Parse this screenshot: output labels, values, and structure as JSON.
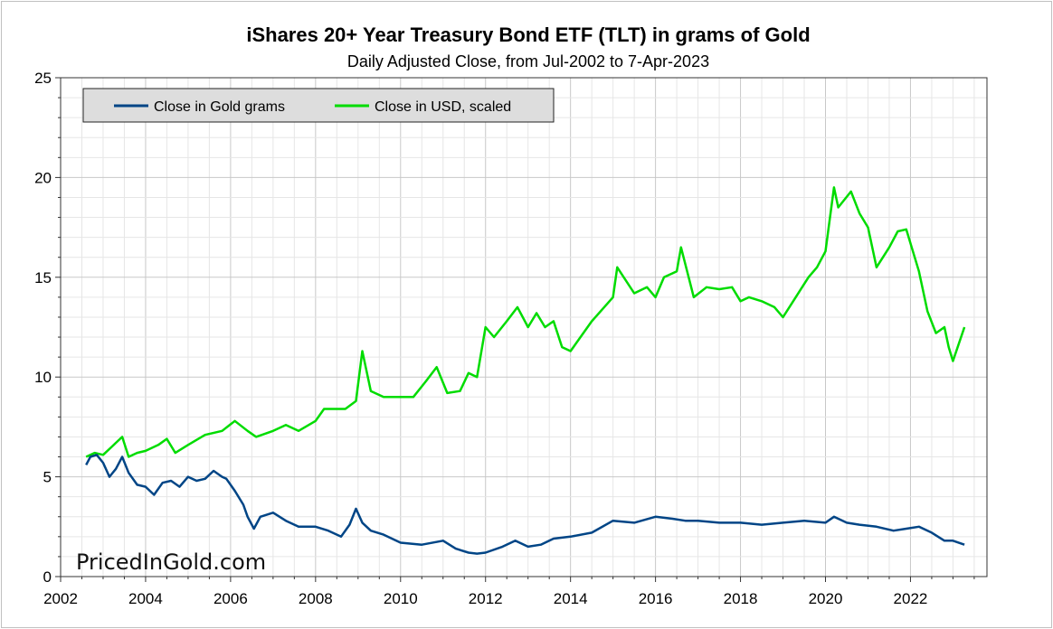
{
  "chart_data": {
    "type": "line",
    "title": "iShares 20+ Year Treasury Bond ETF (TLT) in grams of Gold",
    "subtitle": "Daily Adjusted Close, from Jul-2002 to 7-Apr-2023",
    "xlabel": "",
    "ylabel": "",
    "xlim": [
      2002,
      2023.8
    ],
    "ylim": [
      0,
      25
    ],
    "x_ticks": [
      "2002",
      "2004",
      "2006",
      "2008",
      "2010",
      "2012",
      "2014",
      "2016",
      "2018",
      "2020",
      "2022"
    ],
    "y_ticks": [
      "0",
      "5",
      "10",
      "15",
      "20",
      "25"
    ],
    "grid": true,
    "legend_position": "top-left",
    "watermark": "PricedInGold.com",
    "series": [
      {
        "name": "Close in Gold grams",
        "color": "#004586",
        "x": [
          2002.6,
          2002.7,
          2002.85,
          2003.0,
          2003.15,
          2003.3,
          2003.45,
          2003.6,
          2003.8,
          2004.0,
          2004.2,
          2004.4,
          2004.6,
          2004.8,
          2005.0,
          2005.2,
          2005.4,
          2005.6,
          2005.8,
          2005.9,
          2006.1,
          2006.3,
          2006.4,
          2006.55,
          2006.7,
          2007.0,
          2007.3,
          2007.6,
          2008.0,
          2008.3,
          2008.6,
          2008.8,
          2008.95,
          2009.1,
          2009.3,
          2009.6,
          2010.0,
          2010.5,
          2011.0,
          2011.3,
          2011.6,
          2011.8,
          2012.0,
          2012.4,
          2012.7,
          2013.0,
          2013.3,
          2013.6,
          2014.0,
          2014.5,
          2015.0,
          2015.5,
          2016.0,
          2016.4,
          2016.7,
          2017.0,
          2017.5,
          2018.0,
          2018.5,
          2019.0,
          2019.5,
          2020.0,
          2020.2,
          2020.5,
          2020.8,
          2021.2,
          2021.6,
          2021.9,
          2022.2,
          2022.5,
          2022.8,
          2023.0,
          2023.27
        ],
        "values": [
          5.6,
          6.0,
          6.1,
          5.7,
          5.0,
          5.4,
          6.0,
          5.2,
          4.6,
          4.5,
          4.1,
          4.7,
          4.8,
          4.5,
          5.0,
          4.8,
          4.9,
          5.3,
          5.0,
          4.9,
          4.3,
          3.6,
          3.0,
          2.4,
          3.0,
          3.2,
          2.8,
          2.5,
          2.5,
          2.3,
          2.0,
          2.6,
          3.4,
          2.7,
          2.3,
          2.1,
          1.7,
          1.6,
          1.8,
          1.4,
          1.2,
          1.15,
          1.2,
          1.5,
          1.8,
          1.5,
          1.6,
          1.9,
          2.0,
          2.2,
          2.8,
          2.7,
          3.0,
          2.9,
          2.8,
          2.8,
          2.7,
          2.7,
          2.6,
          2.7,
          2.8,
          2.7,
          3.0,
          2.7,
          2.6,
          2.5,
          2.3,
          2.4,
          2.5,
          2.2,
          1.8,
          1.8,
          1.6
        ]
      },
      {
        "name": "Close in USD, scaled",
        "color": "#00dc00",
        "x": [
          2002.6,
          2002.8,
          2003.0,
          2003.2,
          2003.45,
          2003.6,
          2003.8,
          2004.0,
          2004.3,
          2004.5,
          2004.7,
          2005.0,
          2005.4,
          2005.8,
          2006.1,
          2006.4,
          2006.6,
          2007.0,
          2007.3,
          2007.6,
          2008.0,
          2008.2,
          2008.5,
          2008.7,
          2008.95,
          2009.1,
          2009.3,
          2009.6,
          2010.0,
          2010.3,
          2010.6,
          2010.85,
          2011.1,
          2011.4,
          2011.6,
          2011.8,
          2012.0,
          2012.2,
          2012.5,
          2012.75,
          2013.0,
          2013.2,
          2013.4,
          2013.6,
          2013.8,
          2014.0,
          2014.5,
          2015.0,
          2015.1,
          2015.5,
          2015.8,
          2016.0,
          2016.2,
          2016.5,
          2016.6,
          2016.9,
          2017.2,
          2017.5,
          2017.8,
          2018.0,
          2018.2,
          2018.5,
          2018.8,
          2019.0,
          2019.3,
          2019.6,
          2019.8,
          2020.0,
          2020.2,
          2020.3,
          2020.6,
          2020.8,
          2021.0,
          2021.2,
          2021.5,
          2021.7,
          2021.9,
          2022.2,
          2022.4,
          2022.6,
          2022.8,
          2022.9,
          2023.0,
          2023.27
        ],
        "values": [
          6.0,
          6.2,
          6.1,
          6.5,
          7.0,
          6.0,
          6.2,
          6.3,
          6.6,
          6.9,
          6.2,
          6.6,
          7.1,
          7.3,
          7.8,
          7.3,
          7.0,
          7.3,
          7.6,
          7.3,
          7.8,
          8.4,
          8.4,
          8.4,
          8.8,
          11.3,
          9.3,
          9.0,
          9.0,
          9.0,
          9.8,
          10.5,
          9.2,
          9.3,
          10.2,
          10.0,
          12.5,
          12.0,
          12.8,
          13.5,
          12.5,
          13.2,
          12.5,
          12.8,
          11.5,
          11.3,
          12.8,
          14.0,
          15.5,
          14.2,
          14.5,
          14.0,
          15.0,
          15.3,
          16.5,
          14.0,
          14.5,
          14.4,
          14.5,
          13.8,
          14.0,
          13.8,
          13.5,
          13.0,
          14.0,
          15.0,
          15.5,
          16.3,
          19.5,
          18.5,
          19.3,
          18.2,
          17.5,
          15.5,
          16.5,
          17.3,
          17.4,
          15.3,
          13.3,
          12.2,
          12.5,
          11.5,
          10.8,
          12.5
        ]
      }
    ]
  }
}
